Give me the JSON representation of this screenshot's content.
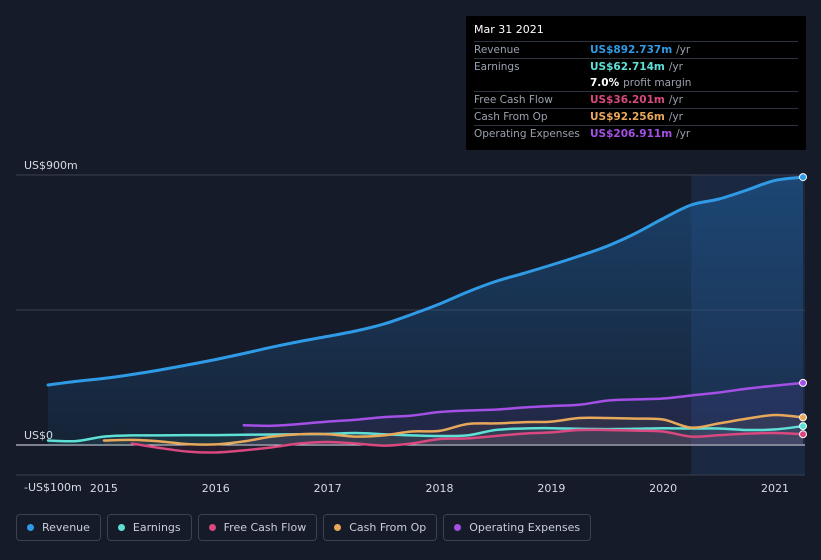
{
  "tooltip": {
    "date": "Mar 31 2021",
    "rows": [
      {
        "label": "Revenue",
        "value": "US$892.737m",
        "unit": "/yr",
        "color": "#2f9be6"
      },
      {
        "label": "Earnings",
        "value": "US$62.714m",
        "unit": "/yr",
        "color": "#5ee0d6"
      },
      {
        "label": "",
        "value": "7.0%",
        "unit": "profit margin",
        "color": "#ffffff"
      },
      {
        "label": "Free Cash Flow",
        "value": "US$36.201m",
        "unit": "/yr",
        "color": "#d9487f"
      },
      {
        "label": "Cash From Op",
        "value": "US$92.256m",
        "unit": "/yr",
        "color": "#e8a85c"
      },
      {
        "label": "Operating Expenses",
        "value": "US$206.911m",
        "unit": "/yr",
        "color": "#a450e6"
      }
    ]
  },
  "legend": [
    {
      "label": "Revenue",
      "color": "#2f9be6"
    },
    {
      "label": "Earnings",
      "color": "#5ee0d6"
    },
    {
      "label": "Free Cash Flow",
      "color": "#d9487f"
    },
    {
      "label": "Cash From Op",
      "color": "#e8a85c"
    },
    {
      "label": "Operating Expenses",
      "color": "#a450e6"
    }
  ],
  "chart_data": {
    "type": "area",
    "y_tick_labels": [
      "US$900m",
      "US$0",
      "-US$100m"
    ],
    "ylim": [
      -100,
      900
    ],
    "x_tick_labels": [
      "2015",
      "2016",
      "2017",
      "2018",
      "2019",
      "2020",
      "2021"
    ],
    "xlim": [
      2014.5,
      2021.25
    ],
    "highlight_start": 2020.25,
    "series": [
      {
        "name": "Revenue",
        "color": "#2f9be6",
        "x": [
          2014.5,
          2014.75,
          2015.0,
          2015.25,
          2015.5,
          2015.75,
          2016.0,
          2016.25,
          2016.5,
          2016.75,
          2017.0,
          2017.25,
          2017.5,
          2017.75,
          2018.0,
          2018.25,
          2018.5,
          2018.75,
          2019.0,
          2019.25,
          2019.5,
          2019.75,
          2020.0,
          2020.25,
          2020.5,
          2020.75,
          2021.0,
          2021.25
        ],
        "y": [
          200,
          212,
          222,
          235,
          250,
          267,
          285,
          305,
          326,
          345,
          362,
          380,
          403,
          435,
          470,
          510,
          545,
          572,
          600,
          630,
          663,
          705,
          755,
          800,
          820,
          850,
          882,
          893
        ]
      },
      {
        "name": "Earnings",
        "color": "#5ee0d6",
        "x": [
          2014.5,
          2014.75,
          2015.0,
          2015.25,
          2015.5,
          2015.75,
          2016.0,
          2016.25,
          2016.5,
          2016.75,
          2017.0,
          2017.25,
          2017.5,
          2017.75,
          2018.0,
          2018.25,
          2018.5,
          2018.75,
          2019.0,
          2019.25,
          2019.5,
          2019.75,
          2020.0,
          2020.25,
          2020.5,
          2020.75,
          2021.0,
          2021.25
        ],
        "y": [
          15,
          13,
          28,
          32,
          32,
          33,
          33,
          34,
          35,
          36,
          37,
          40,
          36,
          32,
          30,
          32,
          50,
          55,
          56,
          54,
          53,
          54,
          56,
          55,
          55,
          50,
          52,
          63
        ]
      },
      {
        "name": "Free Cash Flow",
        "color": "#d9487f",
        "x": [
          2015.25,
          2015.5,
          2015.75,
          2016.0,
          2016.25,
          2016.5,
          2016.75,
          2017.0,
          2017.25,
          2017.5,
          2017.75,
          2018.0,
          2018.25,
          2018.5,
          2018.75,
          2019.0,
          2019.25,
          2019.5,
          2019.75,
          2020.0,
          2020.25,
          2020.5,
          2020.75,
          2021.0,
          2021.25
        ],
        "y": [
          5,
          -10,
          -22,
          -25,
          -18,
          -8,
          5,
          10,
          5,
          -2,
          5,
          20,
          22,
          30,
          38,
          42,
          50,
          50,
          48,
          45,
          28,
          33,
          38,
          40,
          36
        ]
      },
      {
        "name": "Cash From Op",
        "color": "#e8a85c",
        "x": [
          2015.0,
          2015.25,
          2015.5,
          2015.75,
          2016.0,
          2016.25,
          2016.5,
          2016.75,
          2017.0,
          2017.25,
          2017.5,
          2017.75,
          2018.0,
          2018.25,
          2018.5,
          2018.75,
          2019.0,
          2019.25,
          2019.5,
          2019.75,
          2020.0,
          2020.25,
          2020.5,
          2020.75,
          2021.0,
          2021.25
        ],
        "y": [
          15,
          17,
          12,
          3,
          2,
          12,
          28,
          36,
          36,
          28,
          32,
          45,
          47,
          70,
          72,
          76,
          78,
          90,
          90,
          88,
          85,
          58,
          72,
          88,
          100,
          92
        ]
      },
      {
        "name": "Operating Expenses",
        "color": "#a450e6",
        "x": [
          2016.25,
          2016.5,
          2016.75,
          2017.0,
          2017.25,
          2017.5,
          2017.75,
          2018.0,
          2018.25,
          2018.5,
          2018.75,
          2019.0,
          2019.25,
          2019.5,
          2019.75,
          2020.0,
          2020.25,
          2020.5,
          2020.75,
          2021.0,
          2021.25
        ],
        "y": [
          66,
          64,
          70,
          78,
          84,
          93,
          98,
          110,
          115,
          118,
          125,
          130,
          134,
          148,
          152,
          155,
          165,
          175,
          188,
          198,
          207
        ]
      }
    ]
  }
}
